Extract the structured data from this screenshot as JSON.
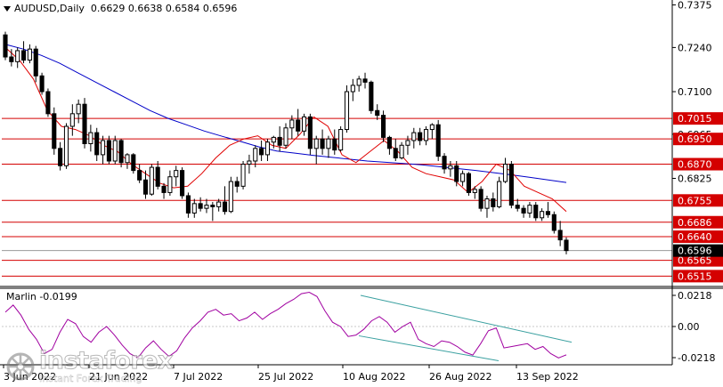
{
  "header": {
    "symbol": "AUDUSD,Daily",
    "ohlc": "0.6629 0.6638 0.6584 0.6596"
  },
  "oscillator": {
    "label": "Marlin -0.0199",
    "scale": [
      "0.0218",
      "0.00",
      "-0.0218"
    ]
  },
  "watermark": {
    "brand": "instaforex",
    "tagline": "Instant Forex Trading"
  },
  "colors": {
    "background": "#ffffff",
    "bull_candle": "#ffffff",
    "bear_candle": "#000000",
    "level_line": "#d40000",
    "level_box": "#d40000",
    "current_price_box": "#000000",
    "slow_ma": "#0000c8",
    "fast_ma": "#e00000",
    "oscillator": "#a000a0",
    "channel": "#3aa0a0"
  },
  "chart_data": {
    "type": "candlestick",
    "price_axis_ticks": [
      "0.7375",
      "0.7240",
      "0.7100",
      "0.6965",
      "0.6825"
    ],
    "time_axis_labels": [
      "3 Jun 2022",
      "21 Jun 2022",
      "7 Jul 2022",
      "25 Jul 2022",
      "10 Aug 2022",
      "26 Aug 2022",
      "13 Sep 2022"
    ],
    "levels": [
      "0.7015",
      "0.6950",
      "0.6870",
      "0.6755",
      "0.6686",
      "0.6640",
      "0.6565",
      "0.6515"
    ],
    "current_price": "0.6596",
    "ylim": [
      0.6485,
      0.7385
    ],
    "candles": [
      [
        0.728,
        0.729,
        0.72,
        0.721
      ],
      [
        0.721,
        0.7235,
        0.718,
        0.7195
      ],
      [
        0.7195,
        0.724,
        0.7175,
        0.723
      ],
      [
        0.723,
        0.726,
        0.719,
        0.72
      ],
      [
        0.72,
        0.725,
        0.719,
        0.7235
      ],
      [
        0.7235,
        0.7245,
        0.713,
        0.715
      ],
      [
        0.715,
        0.716,
        0.709,
        0.71
      ],
      [
        0.71,
        0.711,
        0.702,
        0.703
      ],
      [
        0.703,
        0.705,
        0.69,
        0.692
      ],
      [
        0.692,
        0.694,
        0.685,
        0.6865
      ],
      [
        0.6865,
        0.7,
        0.6855,
        0.699
      ],
      [
        0.699,
        0.706,
        0.696,
        0.703
      ],
      [
        0.703,
        0.7075,
        0.7,
        0.706
      ],
      [
        0.706,
        0.708,
        0.692,
        0.6935
      ],
      [
        0.6935,
        0.6995,
        0.691,
        0.697
      ],
      [
        0.697,
        0.6985,
        0.688,
        0.69
      ],
      [
        0.69,
        0.696,
        0.687,
        0.6945
      ],
      [
        0.6945,
        0.696,
        0.687,
        0.688
      ],
      [
        0.688,
        0.696,
        0.687,
        0.6945
      ],
      [
        0.6945,
        0.695,
        0.686,
        0.6875
      ],
      [
        0.6875,
        0.6905,
        0.6855,
        0.69
      ],
      [
        0.69,
        0.6905,
        0.684,
        0.685
      ],
      [
        0.685,
        0.687,
        0.681,
        0.682
      ],
      [
        0.682,
        0.685,
        0.676,
        0.6775
      ],
      [
        0.6775,
        0.687,
        0.677,
        0.686
      ],
      [
        0.686,
        0.688,
        0.679,
        0.68
      ],
      [
        0.68,
        0.681,
        0.676,
        0.678
      ],
      [
        0.678,
        0.685,
        0.677,
        0.683
      ],
      [
        0.683,
        0.6865,
        0.68,
        0.685
      ],
      [
        0.685,
        0.686,
        0.676,
        0.677
      ],
      [
        0.677,
        0.678,
        0.67,
        0.6715
      ],
      [
        0.6715,
        0.676,
        0.67,
        0.6745
      ],
      [
        0.6745,
        0.6765,
        0.672,
        0.673
      ],
      [
        0.673,
        0.676,
        0.6715,
        0.674
      ],
      [
        0.674,
        0.675,
        0.669,
        0.6735
      ],
      [
        0.6735,
        0.676,
        0.672,
        0.675
      ],
      [
        0.675,
        0.68,
        0.671,
        0.672
      ],
      [
        0.672,
        0.683,
        0.6715,
        0.6815
      ],
      [
        0.6815,
        0.683,
        0.678,
        0.68
      ],
      [
        0.68,
        0.688,
        0.679,
        0.687
      ],
      [
        0.687,
        0.69,
        0.684,
        0.688
      ],
      [
        0.688,
        0.693,
        0.686,
        0.692
      ],
      [
        0.692,
        0.6945,
        0.688,
        0.69
      ],
      [
        0.69,
        0.695,
        0.688,
        0.694
      ],
      [
        0.694,
        0.696,
        0.692,
        0.6955
      ],
      [
        0.6955,
        0.699,
        0.691,
        0.693
      ],
      [
        0.693,
        0.7,
        0.692,
        0.6985
      ],
      [
        0.6985,
        0.7025,
        0.695,
        0.701
      ],
      [
        0.701,
        0.7045,
        0.696,
        0.6975
      ],
      [
        0.6975,
        0.703,
        0.696,
        0.702
      ],
      [
        0.702,
        0.703,
        0.69,
        0.692
      ],
      [
        0.692,
        0.696,
        0.687,
        0.695
      ],
      [
        0.695,
        0.698,
        0.69,
        0.692
      ],
      [
        0.692,
        0.696,
        0.689,
        0.695
      ],
      [
        0.695,
        0.698,
        0.69,
        0.6915
      ],
      [
        0.6915,
        0.699,
        0.691,
        0.698
      ],
      [
        0.698,
        0.712,
        0.697,
        0.71
      ],
      [
        0.71,
        0.714,
        0.707,
        0.712
      ],
      [
        0.712,
        0.715,
        0.71,
        0.714
      ],
      [
        0.714,
        0.716,
        0.711,
        0.713
      ],
      [
        0.713,
        0.7135,
        0.703,
        0.704
      ],
      [
        0.704,
        0.706,
        0.701,
        0.7025
      ],
      [
        0.7025,
        0.704,
        0.694,
        0.6955
      ],
      [
        0.6955,
        0.696,
        0.69,
        0.692
      ],
      [
        0.692,
        0.695,
        0.688,
        0.689
      ],
      [
        0.689,
        0.694,
        0.6885,
        0.693
      ],
      [
        0.693,
        0.696,
        0.69,
        0.6945
      ],
      [
        0.6945,
        0.6985,
        0.692,
        0.697
      ],
      [
        0.697,
        0.6985,
        0.693,
        0.6945
      ],
      [
        0.6945,
        0.699,
        0.693,
        0.698
      ],
      [
        0.698,
        0.7,
        0.695,
        0.6995
      ],
      [
        0.6995,
        0.701,
        0.688,
        0.6895
      ],
      [
        0.6895,
        0.6905,
        0.684,
        0.6855
      ],
      [
        0.6855,
        0.688,
        0.683,
        0.6865
      ],
      [
        0.6865,
        0.688,
        0.68,
        0.6815
      ],
      [
        0.6815,
        0.685,
        0.68,
        0.684
      ],
      [
        0.684,
        0.6845,
        0.677,
        0.678
      ],
      [
        0.678,
        0.68,
        0.676,
        0.679
      ],
      [
        0.679,
        0.68,
        0.672,
        0.673
      ],
      [
        0.673,
        0.677,
        0.67,
        0.676
      ],
      [
        0.676,
        0.678,
        0.672,
        0.6735
      ],
      [
        0.6735,
        0.683,
        0.673,
        0.6815
      ],
      [
        0.6815,
        0.689,
        0.681,
        0.687
      ],
      [
        0.687,
        0.688,
        0.673,
        0.674
      ],
      [
        0.674,
        0.676,
        0.672,
        0.673
      ],
      [
        0.673,
        0.674,
        0.67,
        0.6715
      ],
      [
        0.6715,
        0.675,
        0.67,
        0.674
      ],
      [
        0.674,
        0.675,
        0.669,
        0.67
      ],
      [
        0.67,
        0.673,
        0.669,
        0.672
      ],
      [
        0.672,
        0.675,
        0.67,
        0.671
      ],
      [
        0.671,
        0.672,
        0.665,
        0.666
      ],
      [
        0.666,
        0.669,
        0.661,
        0.663
      ],
      [
        0.6629,
        0.6638,
        0.6584,
        0.6596
      ]
    ],
    "slow_ma": [
      0.725,
      0.7235,
      0.7215,
      0.719,
      0.716,
      0.713,
      0.71,
      0.707,
      0.704,
      0.7015,
      0.6995,
      0.6975,
      0.6958,
      0.6942,
      0.6925,
      0.6912,
      0.6905,
      0.6898,
      0.6892,
      0.6886,
      0.688,
      0.6876,
      0.6872,
      0.6868,
      0.6862,
      0.6856,
      0.685,
      0.6843,
      0.6836,
      0.6828,
      0.682,
      0.6812
    ],
    "fast_ma": [
      0.724,
      0.72,
      0.714,
      0.704,
      0.699,
      0.698,
      0.696,
      0.693,
      0.691,
      0.687,
      0.684,
      0.681,
      0.6795,
      0.68,
      0.684,
      0.689,
      0.693,
      0.695,
      0.696,
      0.693,
      0.692,
      0.6965,
      0.702,
      0.699,
      0.69,
      0.6875,
      0.691,
      0.6945,
      0.691,
      0.686,
      0.684,
      0.683,
      0.682,
      0.678,
      0.6815,
      0.687,
      0.685,
      0.68,
      0.678,
      0.676,
      0.672
    ],
    "oscillator": [
      0.01,
      0.015,
      0.008,
      -0.002,
      -0.009,
      -0.019,
      -0.016,
      -0.004,
      0.005,
      0.002,
      -0.007,
      -0.011,
      -0.004,
      0.0,
      -0.006,
      -0.013,
      -0.019,
      -0.022,
      -0.015,
      -0.01,
      -0.016,
      -0.021,
      -0.017,
      -0.008,
      -0.001,
      0.004,
      0.01,
      0.012,
      0.008,
      0.009,
      0.004,
      0.006,
      0.01,
      0.005,
      0.009,
      0.012,
      0.016,
      0.019,
      0.023,
      0.024,
      0.021,
      0.011,
      0.003,
      0.0,
      -0.007,
      -0.006,
      -0.002,
      0.004,
      0.007,
      0.003,
      -0.004,
      0.0,
      0.003,
      -0.009,
      -0.012,
      -0.014,
      -0.01,
      -0.011,
      -0.014,
      -0.018,
      -0.02,
      -0.012,
      -0.003,
      -0.001,
      -0.015,
      -0.014,
      -0.013,
      -0.012,
      -0.016,
      -0.014,
      -0.019,
      -0.022,
      -0.0199
    ]
  }
}
